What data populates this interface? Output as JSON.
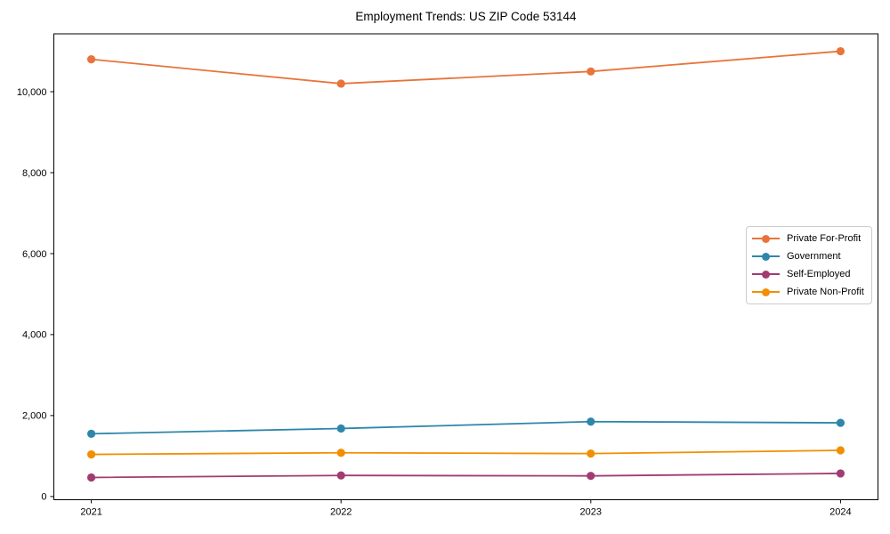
{
  "chart_data": {
    "type": "line",
    "title": "Employment Trends: US ZIP Code 53144",
    "categories": [
      "2021",
      "2022",
      "2023",
      "2024"
    ],
    "x_values": [
      2021,
      2022,
      2023,
      2024
    ],
    "series": [
      {
        "name": "Private For-Profit",
        "color": "#E8743B",
        "values": [
          10800,
          10200,
          10500,
          11000
        ]
      },
      {
        "name": "Government",
        "color": "#2E86AB",
        "values": [
          1550,
          1680,
          1850,
          1820
        ]
      },
      {
        "name": "Self-Employed",
        "color": "#A23B72",
        "values": [
          470,
          520,
          510,
          570
        ]
      },
      {
        "name": "Private Non-Profit",
        "color": "#F18F01",
        "values": [
          1040,
          1080,
          1060,
          1140
        ]
      }
    ],
    "xlabel": "",
    "ylabel": "",
    "xlim": [
      2020.85,
      2024.15
    ],
    "ylim": [
      -80,
      11430
    ],
    "y_ticks": {
      "values": [
        0,
        2000,
        4000,
        6000,
        8000,
        10000
      ],
      "labels": [
        "0",
        "2,000",
        "4,000",
        "6,000",
        "8,000",
        "10,000"
      ]
    },
    "grid": false,
    "marker": "circle",
    "marker_radius": 4.6,
    "line_width": 1.8,
    "axis_color": "#000000",
    "legend_position": "center right"
  }
}
